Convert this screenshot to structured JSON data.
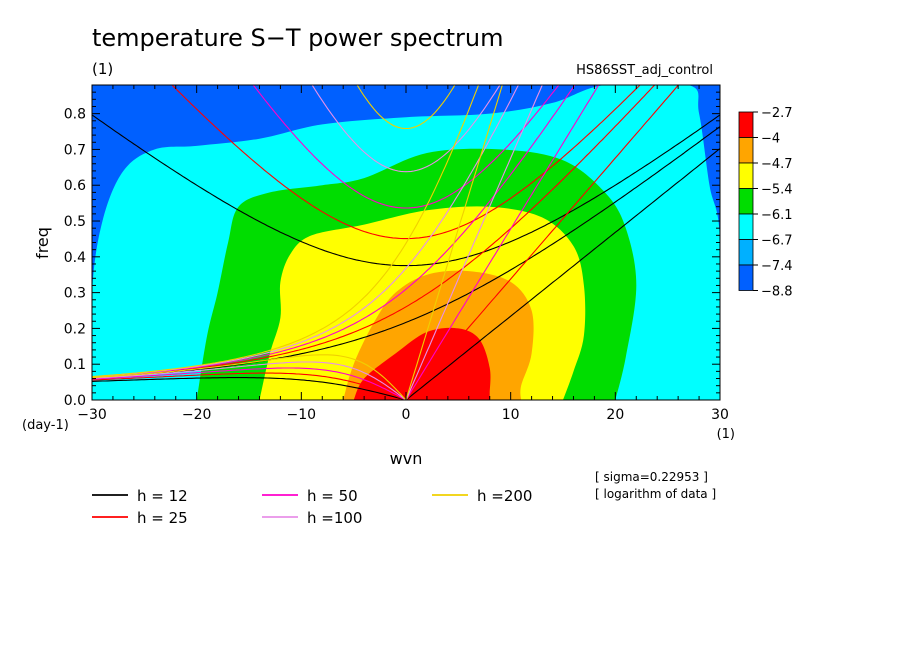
{
  "chart_data": {
    "type": "heatmap",
    "title": "temperature S−T power spectrum",
    "subtitle_left": "(1)",
    "subtitle_right": "HS86SST_adj_control",
    "xlabel": "wvn",
    "ylabel": "freq",
    "x_unit": "(1)",
    "y_unit": "(day-1)",
    "xlim": [
      -30,
      30
    ],
    "ylim": [
      0,
      0.88
    ],
    "x_ticks": [
      -30,
      -20,
      -10,
      0,
      10,
      20,
      30
    ],
    "x_tick_labels": [
      "−30",
      "−20",
      "−10",
      "0",
      "10",
      "20",
      "30"
    ],
    "y_ticks": [
      0.0,
      0.1,
      0.2,
      0.3,
      0.4,
      0.5,
      0.6,
      0.7,
      0.8
    ],
    "y_tick_labels": [
      "0.0",
      "0.1",
      "0.2",
      "0.3",
      "0.4",
      "0.5",
      "0.6",
      "0.7",
      "0.8"
    ],
    "levels": [
      -2.7,
      -4,
      -4.7,
      -5.4,
      -6.1,
      -6.7,
      -7.4,
      -8.8
    ],
    "level_labels": [
      "−2.7",
      "−4",
      "−4.7",
      "−5.4",
      "−6.1",
      "−6.7",
      "−7.4",
      "−8.8"
    ],
    "colors": [
      "#ff0000",
      "#ffa500",
      "#ffff00",
      "#00dd00",
      "#00ffff",
      "#00b0ff",
      "#0060ff"
    ],
    "annotations": [
      "[ sigma=0.22953 ]",
      "[ logarithm of data ]"
    ],
    "dispersion_curves": [
      {
        "label": "h = 12",
        "h": 12,
        "color": "#000000"
      },
      {
        "label": "h = 25",
        "h": 25,
        "color": "#ff0000"
      },
      {
        "label": "h = 50",
        "h": 50,
        "color": "#ff00cc"
      },
      {
        "label": "h =100",
        "h": 100,
        "color": "#e890e8"
      },
      {
        "label": "h =200",
        "h": 200,
        "color": "#f0d000"
      }
    ]
  }
}
